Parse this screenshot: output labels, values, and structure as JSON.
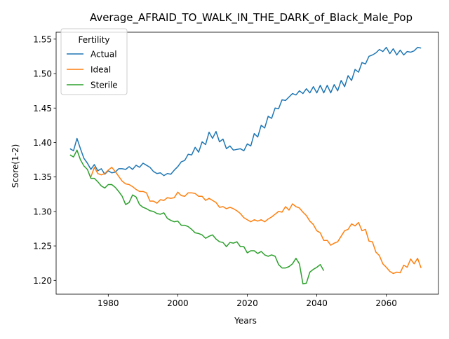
{
  "chart_data": {
    "type": "line",
    "title": "Average_AFRAID_TO_WALK_IN_THE_DARK_of_Black_Male_Pop",
    "xlabel": "Years",
    "ylabel": "Score(1-2)",
    "xlim": [
      1965,
      2075
    ],
    "ylim": [
      1.18,
      1.56
    ],
    "xticks": [
      1980,
      2000,
      2020,
      2040,
      2060
    ],
    "yticks": [
      1.2,
      1.25,
      1.3,
      1.35,
      1.4,
      1.45,
      1.5,
      1.55
    ],
    "xtick_labels": [
      "1980",
      "2000",
      "2020",
      "2040",
      "2060"
    ],
    "ytick_labels": [
      "1.20",
      "1.25",
      "1.30",
      "1.35",
      "1.40",
      "1.45",
      "1.50",
      "1.55"
    ],
    "grid": false,
    "legend": {
      "title": "Fertility",
      "position": "upper-left"
    },
    "series": [
      {
        "name": "Actual",
        "color": "#1f77b4",
        "points": [
          [
            1969,
            1.391
          ],
          [
            1970,
            1.388
          ],
          [
            1971,
            1.406
          ],
          [
            1972,
            1.391
          ],
          [
            1973,
            1.377
          ],
          [
            1974,
            1.37
          ],
          [
            1975,
            1.361
          ],
          [
            1976,
            1.368
          ],
          [
            1977,
            1.359
          ],
          [
            1978,
            1.362
          ],
          [
            1979,
            1.354
          ],
          [
            1980,
            1.359
          ],
          [
            1981,
            1.356
          ],
          [
            1982,
            1.357
          ],
          [
            1983,
            1.362
          ],
          [
            1984,
            1.362
          ],
          [
            1985,
            1.361
          ],
          [
            1986,
            1.365
          ],
          [
            1987,
            1.361
          ],
          [
            1988,
            1.367
          ],
          [
            1989,
            1.364
          ],
          [
            1990,
            1.37
          ],
          [
            1991,
            1.367
          ],
          [
            1992,
            1.364
          ],
          [
            1993,
            1.358
          ],
          [
            1994,
            1.355
          ],
          [
            1995,
            1.356
          ],
          [
            1996,
            1.352
          ],
          [
            1997,
            1.355
          ],
          [
            1998,
            1.354
          ],
          [
            1999,
            1.36
          ],
          [
            2000,
            1.365
          ],
          [
            2001,
            1.372
          ],
          [
            2002,
            1.374
          ],
          [
            2003,
            1.383
          ],
          [
            2004,
            1.382
          ],
          [
            2005,
            1.393
          ],
          [
            2006,
            1.386
          ],
          [
            2007,
            1.401
          ],
          [
            2008,
            1.397
          ],
          [
            2009,
            1.415
          ],
          [
            2010,
            1.406
          ],
          [
            2011,
            1.416
          ],
          [
            2012,
            1.401
          ],
          [
            2013,
            1.405
          ],
          [
            2014,
            1.391
          ],
          [
            2015,
            1.395
          ],
          [
            2016,
            1.389
          ],
          [
            2017,
            1.39
          ],
          [
            2018,
            1.391
          ],
          [
            2019,
            1.388
          ],
          [
            2020,
            1.398
          ],
          [
            2021,
            1.395
          ],
          [
            2022,
            1.413
          ],
          [
            2023,
            1.408
          ],
          [
            2024,
            1.425
          ],
          [
            2025,
            1.421
          ],
          [
            2026,
            1.438
          ],
          [
            2027,
            1.435
          ],
          [
            2028,
            1.45
          ],
          [
            2029,
            1.449
          ],
          [
            2030,
            1.462
          ],
          [
            2031,
            1.461
          ],
          [
            2032,
            1.466
          ],
          [
            2033,
            1.471
          ],
          [
            2034,
            1.469
          ],
          [
            2035,
            1.475
          ],
          [
            2036,
            1.471
          ],
          [
            2037,
            1.478
          ],
          [
            2038,
            1.472
          ],
          [
            2039,
            1.481
          ],
          [
            2040,
            1.472
          ],
          [
            2041,
            1.483
          ],
          [
            2042,
            1.472
          ],
          [
            2043,
            1.483
          ],
          [
            2044,
            1.472
          ],
          [
            2045,
            1.484
          ],
          [
            2046,
            1.475
          ],
          [
            2047,
            1.49
          ],
          [
            2048,
            1.481
          ],
          [
            2049,
            1.497
          ],
          [
            2050,
            1.49
          ],
          [
            2051,
            1.506
          ],
          [
            2052,
            1.502
          ],
          [
            2053,
            1.516
          ],
          [
            2054,
            1.514
          ],
          [
            2055,
            1.525
          ],
          [
            2056,
            1.527
          ],
          [
            2057,
            1.53
          ],
          [
            2058,
            1.535
          ],
          [
            2059,
            1.532
          ],
          [
            2060,
            1.538
          ],
          [
            2061,
            1.529
          ],
          [
            2062,
            1.536
          ],
          [
            2063,
            1.527
          ],
          [
            2064,
            1.534
          ],
          [
            2065,
            1.527
          ],
          [
            2066,
            1.532
          ],
          [
            2067,
            1.531
          ],
          [
            2068,
            1.533
          ],
          [
            2069,
            1.538
          ],
          [
            2070,
            1.537
          ]
        ]
      },
      {
        "name": "Ideal",
        "color": "#ff7f0e",
        "points": [
          [
            1975,
            1.35
          ],
          [
            1976,
            1.364
          ],
          [
            1977,
            1.355
          ],
          [
            1978,
            1.353
          ],
          [
            1979,
            1.355
          ],
          [
            1980,
            1.36
          ],
          [
            1981,
            1.364
          ],
          [
            1982,
            1.358
          ],
          [
            1983,
            1.351
          ],
          [
            1984,
            1.344
          ],
          [
            1985,
            1.34
          ],
          [
            1986,
            1.339
          ],
          [
            1987,
            1.336
          ],
          [
            1988,
            1.332
          ],
          [
            1989,
            1.329
          ],
          [
            1990,
            1.329
          ],
          [
            1991,
            1.327
          ],
          [
            1992,
            1.315
          ],
          [
            1993,
            1.315
          ],
          [
            1994,
            1.312
          ],
          [
            1995,
            1.317
          ],
          [
            1996,
            1.316
          ],
          [
            1997,
            1.32
          ],
          [
            1998,
            1.319
          ],
          [
            1999,
            1.32
          ],
          [
            2000,
            1.328
          ],
          [
            2001,
            1.323
          ],
          [
            2002,
            1.322
          ],
          [
            2003,
            1.327
          ],
          [
            2004,
            1.327
          ],
          [
            2005,
            1.326
          ],
          [
            2006,
            1.322
          ],
          [
            2007,
            1.322
          ],
          [
            2008,
            1.316
          ],
          [
            2009,
            1.319
          ],
          [
            2010,
            1.316
          ],
          [
            2011,
            1.313
          ],
          [
            2012,
            1.306
          ],
          [
            2013,
            1.307
          ],
          [
            2014,
            1.304
          ],
          [
            2015,
            1.306
          ],
          [
            2016,
            1.304
          ],
          [
            2017,
            1.301
          ],
          [
            2018,
            1.297
          ],
          [
            2019,
            1.291
          ],
          [
            2020,
            1.288
          ],
          [
            2021,
            1.285
          ],
          [
            2022,
            1.288
          ],
          [
            2023,
            1.286
          ],
          [
            2024,
            1.288
          ],
          [
            2025,
            1.285
          ],
          [
            2026,
            1.289
          ],
          [
            2027,
            1.292
          ],
          [
            2028,
            1.296
          ],
          [
            2029,
            1.3
          ],
          [
            2030,
            1.299
          ],
          [
            2031,
            1.307
          ],
          [
            2032,
            1.302
          ],
          [
            2033,
            1.311
          ],
          [
            2034,
            1.307
          ],
          [
            2035,
            1.305
          ],
          [
            2036,
            1.299
          ],
          [
            2037,
            1.294
          ],
          [
            2038,
            1.286
          ],
          [
            2039,
            1.281
          ],
          [
            2040,
            1.272
          ],
          [
            2041,
            1.269
          ],
          [
            2042,
            1.258
          ],
          [
            2043,
            1.258
          ],
          [
            2044,
            1.251
          ],
          [
            2045,
            1.254
          ],
          [
            2046,
            1.256
          ],
          [
            2047,
            1.264
          ],
          [
            2048,
            1.272
          ],
          [
            2049,
            1.274
          ],
          [
            2050,
            1.282
          ],
          [
            2051,
            1.279
          ],
          [
            2052,
            1.284
          ],
          [
            2053,
            1.272
          ],
          [
            2054,
            1.274
          ],
          [
            2055,
            1.257
          ],
          [
            2056,
            1.256
          ],
          [
            2057,
            1.241
          ],
          [
            2058,
            1.236
          ],
          [
            2059,
            1.224
          ],
          [
            2060,
            1.219
          ],
          [
            2061,
            1.213
          ],
          [
            2062,
            1.21
          ],
          [
            2063,
            1.212
          ],
          [
            2064,
            1.211
          ],
          [
            2065,
            1.222
          ],
          [
            2066,
            1.219
          ],
          [
            2067,
            1.231
          ],
          [
            2068,
            1.224
          ],
          [
            2069,
            1.232
          ],
          [
            2070,
            1.218
          ]
        ]
      },
      {
        "name": "Sterile",
        "color": "#2ca02c",
        "points": [
          [
            1969,
            1.382
          ],
          [
            1970,
            1.379
          ],
          [
            1971,
            1.389
          ],
          [
            1972,
            1.375
          ],
          [
            1973,
            1.366
          ],
          [
            1974,
            1.361
          ],
          [
            1975,
            1.348
          ],
          [
            1976,
            1.348
          ],
          [
            1977,
            1.343
          ],
          [
            1978,
            1.337
          ],
          [
            1979,
            1.334
          ],
          [
            1980,
            1.339
          ],
          [
            1981,
            1.339
          ],
          [
            1982,
            1.335
          ],
          [
            1983,
            1.329
          ],
          [
            1984,
            1.322
          ],
          [
            1985,
            1.31
          ],
          [
            1986,
            1.313
          ],
          [
            1987,
            1.324
          ],
          [
            1988,
            1.321
          ],
          [
            1989,
            1.31
          ],
          [
            1990,
            1.306
          ],
          [
            1991,
            1.304
          ],
          [
            1992,
            1.301
          ],
          [
            1993,
            1.3
          ],
          [
            1994,
            1.297
          ],
          [
            1995,
            1.296
          ],
          [
            1996,
            1.298
          ],
          [
            1997,
            1.29
          ],
          [
            1998,
            1.287
          ],
          [
            1999,
            1.285
          ],
          [
            2000,
            1.286
          ],
          [
            2001,
            1.28
          ],
          [
            2002,
            1.28
          ],
          [
            2003,
            1.278
          ],
          [
            2004,
            1.274
          ],
          [
            2005,
            1.269
          ],
          [
            2006,
            1.268
          ],
          [
            2007,
            1.266
          ],
          [
            2008,
            1.261
          ],
          [
            2009,
            1.264
          ],
          [
            2010,
            1.266
          ],
          [
            2011,
            1.26
          ],
          [
            2012,
            1.256
          ],
          [
            2013,
            1.255
          ],
          [
            2014,
            1.249
          ],
          [
            2015,
            1.255
          ],
          [
            2016,
            1.254
          ],
          [
            2017,
            1.256
          ],
          [
            2018,
            1.249
          ],
          [
            2019,
            1.249
          ],
          [
            2020,
            1.24
          ],
          [
            2021,
            1.243
          ],
          [
            2022,
            1.243
          ],
          [
            2023,
            1.239
          ],
          [
            2024,
            1.242
          ],
          [
            2025,
            1.237
          ],
          [
            2026,
            1.235
          ],
          [
            2027,
            1.237
          ],
          [
            2028,
            1.235
          ],
          [
            2029,
            1.223
          ],
          [
            2030,
            1.218
          ],
          [
            2031,
            1.218
          ],
          [
            2032,
            1.22
          ],
          [
            2033,
            1.224
          ],
          [
            2034,
            1.232
          ],
          [
            2035,
            1.224
          ],
          [
            2036,
            1.195
          ],
          [
            2037,
            1.196
          ],
          [
            2038,
            1.212
          ],
          [
            2039,
            1.216
          ],
          [
            2040,
            1.219
          ],
          [
            2041,
            1.223
          ],
          [
            2042,
            1.214
          ]
        ]
      }
    ]
  }
}
